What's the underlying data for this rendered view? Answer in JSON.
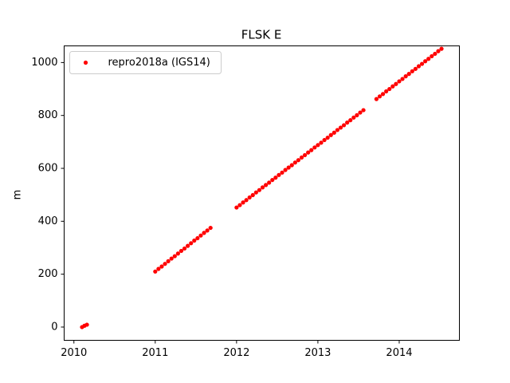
{
  "chart_data": {
    "type": "scatter",
    "title": "FLSK E",
    "y_label": "m",
    "series": [
      {
        "name": "repro2018a (IGS14)",
        "color": "#ff0000",
        "x": [
          2010.1,
          2010.13,
          2010.16,
          2011,
          2011.04,
          2011.08,
          2011.12,
          2011.16,
          2011.2,
          2011.24,
          2011.28,
          2011.32,
          2011.36,
          2011.4,
          2011.44,
          2011.48,
          2011.52,
          2011.56,
          2011.6,
          2011.64,
          2011.68,
          2012,
          2012.04,
          2012.08,
          2012.12,
          2012.16,
          2012.2,
          2012.24,
          2012.28,
          2012.32,
          2012.36,
          2012.4,
          2012.44,
          2012.48,
          2012.52,
          2012.56,
          2012.6,
          2012.64,
          2012.68,
          2012.72,
          2012.76,
          2012.8,
          2012.84,
          2012.88,
          2012.92,
          2012.96,
          2013,
          2013.04,
          2013.08,
          2013.12,
          2013.16,
          2013.2,
          2013.24,
          2013.28,
          2013.32,
          2013.36,
          2013.4,
          2013.44,
          2013.48,
          2013.52,
          2013.56,
          2013.72,
          2013.76,
          2013.8,
          2013.84,
          2013.88,
          2013.92,
          2013.96,
          2014,
          2014.04,
          2014.08,
          2014.12,
          2014.16,
          2014.2,
          2014.24,
          2014.28,
          2014.32,
          2014.36,
          2014.4,
          2014.44,
          2014.48,
          2014.52
        ],
        "values": [
          0,
          5,
          9,
          210,
          220,
          229,
          239,
          249,
          259,
          268,
          278,
          288,
          297,
          307,
          317,
          327,
          336,
          346,
          356,
          365,
          375,
          452,
          461,
          471,
          480,
          490,
          499,
          509,
          518,
          528,
          537,
          546,
          556,
          565,
          575,
          584,
          594,
          603,
          612,
          622,
          631,
          641,
          650,
          660,
          669,
          679,
          688,
          697,
          707,
          716,
          726,
          735,
          745,
          754,
          763,
          773,
          782,
          792,
          801,
          811,
          820,
          862,
          872,
          881,
          891,
          900,
          910,
          919,
          929,
          938,
          948,
          957,
          967,
          976,
          986,
          995,
          1005,
          1014,
          1024,
          1033,
          1043,
          1052
        ]
      }
    ],
    "xlim": [
      2009.88,
      2014.74
    ],
    "xticks": [
      2010,
      2011,
      2012,
      2013,
      2014
    ],
    "ylim": [
      -50,
      1063
    ],
    "yticks": [
      0,
      200,
      400,
      600,
      800,
      1000
    ],
    "legend": "upper left"
  }
}
